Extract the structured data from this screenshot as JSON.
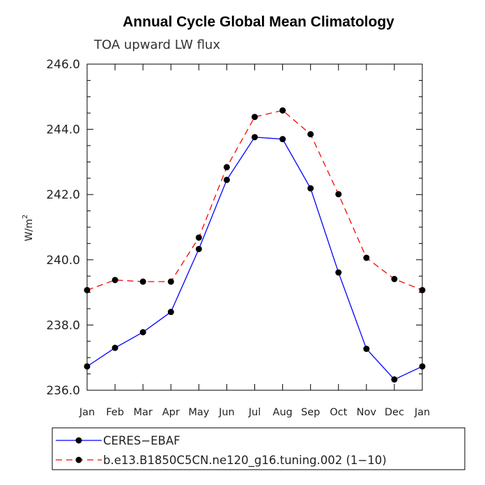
{
  "chart_data": {
    "type": "line",
    "title": "Annual Cycle Global Mean Climatology",
    "subtitle": "TOA upward LW flux",
    "ylabel": "W/m",
    "ylabel_sup": "2",
    "ylim": [
      236.0,
      246.0
    ],
    "yticks": [
      236.0,
      238.0,
      240.0,
      242.0,
      244.0,
      246.0
    ],
    "ytick_labels": [
      "236.0",
      "238.0",
      "240.0",
      "242.0",
      "244.0",
      "246.0"
    ],
    "categories": [
      "Jan",
      "Feb",
      "Mar",
      "Apr",
      "May",
      "Jun",
      "Jul",
      "Aug",
      "Sep",
      "Oct",
      "Nov",
      "Dec",
      "Jan"
    ],
    "series": [
      {
        "name": "CERES−EBAF",
        "color": "#0000ff",
        "dash": "solid",
        "values": [
          236.73,
          237.3,
          237.78,
          238.4,
          240.33,
          242.45,
          243.76,
          243.7,
          242.19,
          239.61,
          237.27,
          236.33,
          236.73
        ]
      },
      {
        "name": "b.e13.B1850C5CN.ne120_g16.tuning.002 (1−10)",
        "color": "#ff0000",
        "dash": "dashed",
        "values": [
          239.07,
          239.38,
          239.33,
          239.33,
          240.68,
          242.84,
          244.38,
          244.58,
          243.85,
          242.01,
          240.06,
          239.41,
          239.07
        ]
      }
    ],
    "legend_position": "bottom"
  }
}
